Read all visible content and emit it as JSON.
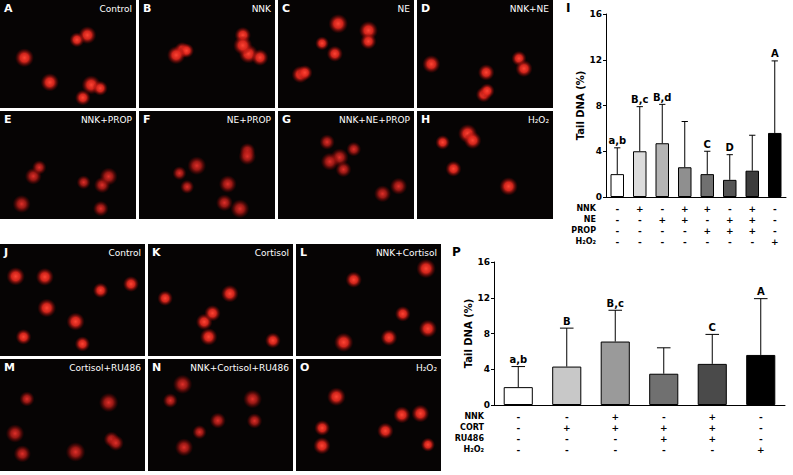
{
  "panels": [
    {
      "letter": "A",
      "label": "Control"
    },
    {
      "letter": "B",
      "label": "NNK"
    },
    {
      "letter": "C",
      "label": "NE"
    },
    {
      "letter": "D",
      "label": "NNK+NE"
    },
    {
      "letter": "E",
      "label": "NNK+PROP"
    },
    {
      "letter": "F",
      "label": "NE+PROP"
    },
    {
      "letter": "G",
      "label": "NNK+NE+PROP"
    },
    {
      "letter": "H",
      "label": "H₂O₂"
    },
    {
      "letter": "J",
      "label": "Control"
    },
    {
      "letter": "K",
      "label": "Cortisol"
    },
    {
      "letter": "L",
      "label": "NNK+Cortisol"
    },
    {
      "letter": "M",
      "label": "Cortisol+RU486"
    },
    {
      "letter": "N",
      "label": "NNK+Cortisol+RU486"
    },
    {
      "letter": "O",
      "label": "H₂O₂"
    }
  ],
  "chart_data": [
    {
      "type": "bar",
      "panel": "I",
      "y_label": "Tail DNA (%)",
      "categories": [
        null,
        null,
        null,
        null,
        null,
        null,
        null,
        null
      ],
      "values": [
        2.0,
        4.0,
        4.7,
        2.6,
        2.0,
        1.5,
        2.3,
        5.6
      ],
      "errors": [
        2.3,
        3.9,
        3.4,
        4.0,
        2.0,
        2.2,
        3.1,
        6.3
      ],
      "letters": [
        "a,b",
        "B,c",
        "B,d",
        null,
        "C",
        "D",
        null,
        "A"
      ],
      "colors": [
        "#ffffff",
        "#dcdcdc",
        "#b4b4b4",
        "#8f8f8f",
        "#707070",
        "#555555",
        "#3c3c3c",
        "#000000"
      ],
      "treatments": [
        {
          "name": "NNK",
          "marks": [
            "-",
            "+",
            "-",
            "+",
            "+",
            "-",
            "+",
            "-"
          ]
        },
        {
          "name": "NE",
          "marks": [
            "-",
            "-",
            "+",
            "+",
            "-",
            "+",
            "+",
            "-"
          ]
        },
        {
          "name": "PROP",
          "marks": [
            "-",
            "-",
            "-",
            "-",
            "+",
            "+",
            "+",
            "-"
          ]
        },
        {
          "name": "H₂O₂",
          "marks": [
            "-",
            "-",
            "-",
            "-",
            "-",
            "-",
            "-",
            "+"
          ]
        }
      ],
      "ylim": [
        0,
        16
      ],
      "yticks": [
        0,
        4,
        8,
        12,
        16
      ],
      "grid": false
    },
    {
      "type": "bar",
      "panel": "P",
      "y_label": "Tail DNA (%)",
      "categories": [
        null,
        null,
        null,
        null,
        null,
        null
      ],
      "values": [
        2.0,
        4.3,
        7.1,
        3.5,
        4.6,
        5.6
      ],
      "errors": [
        2.3,
        4.3,
        3.5,
        2.9,
        3.3,
        6.3
      ],
      "letters": [
        "a,b",
        "B",
        "B,c",
        null,
        "C",
        "A"
      ],
      "colors": [
        "#ffffff",
        "#c8c8c8",
        "#9a9a9a",
        "#707070",
        "#4a4a4a",
        "#000000"
      ],
      "treatments": [
        {
          "name": "NNK",
          "marks": [
            "-",
            "-",
            "+",
            "-",
            "+",
            "-"
          ]
        },
        {
          "name": "CORT",
          "marks": [
            "-",
            "+",
            "+",
            "+",
            "+",
            "-"
          ]
        },
        {
          "name": "RU486",
          "marks": [
            "-",
            "-",
            "-",
            "+",
            "+",
            "-"
          ]
        },
        {
          "name": "H₂O₂",
          "marks": [
            "-",
            "-",
            "-",
            "-",
            "-",
            "+"
          ]
        }
      ],
      "ylim": [
        0,
        16
      ],
      "yticks": [
        0,
        4,
        8,
        12,
        16
      ],
      "grid": false
    }
  ]
}
